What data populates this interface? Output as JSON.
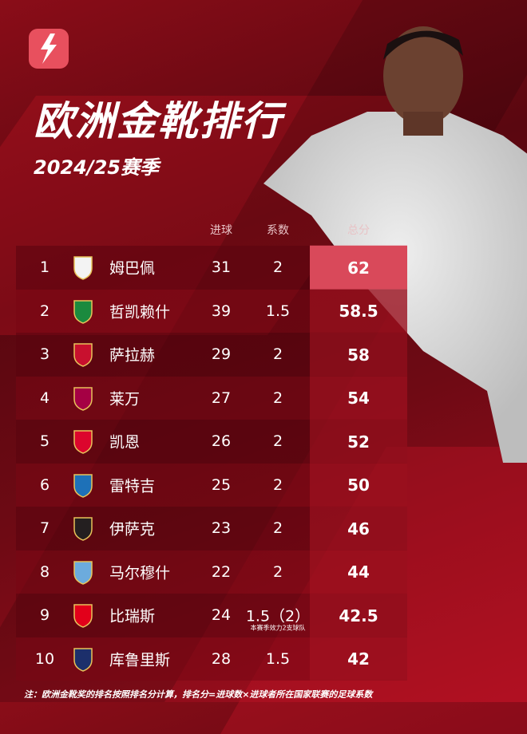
{
  "title": "欧洲金靴排行",
  "season": "2024/25赛季",
  "colors": {
    "accent": "#e8505e",
    "highlight": "#d9495a",
    "background": "#6e0a14"
  },
  "headers": {
    "goals": "进球",
    "coef": "系数",
    "total": "总分"
  },
  "rows": [
    {
      "rank": "1",
      "name": "姆巴佩",
      "goals": "31",
      "coef": "2",
      "total": "62",
      "club_color": "#f3f3f3"
    },
    {
      "rank": "2",
      "name": "哲凯赖什",
      "goals": "39",
      "coef": "1.5",
      "total": "58.5",
      "club_color": "#1b8a3e"
    },
    {
      "rank": "3",
      "name": "萨拉赫",
      "goals": "29",
      "coef": "2",
      "total": "58",
      "club_color": "#c8102e"
    },
    {
      "rank": "4",
      "name": "莱万",
      "goals": "27",
      "coef": "2",
      "total": "54",
      "club_color": "#a50044"
    },
    {
      "rank": "5",
      "name": "凯恩",
      "goals": "26",
      "coef": "2",
      "total": "52",
      "club_color": "#dc052d"
    },
    {
      "rank": "6",
      "name": "雷特吉",
      "goals": "25",
      "coef": "2",
      "total": "50",
      "club_color": "#1e71b8"
    },
    {
      "rank": "7",
      "name": "伊萨克",
      "goals": "23",
      "coef": "2",
      "total": "46",
      "club_color": "#241f20"
    },
    {
      "rank": "8",
      "name": "马尔穆什",
      "goals": "22",
      "coef": "2",
      "total": "44",
      "club_color": "#6cabdd"
    },
    {
      "rank": "9",
      "name": "比瑞斯",
      "goals": "24",
      "coef": "1.5（2）",
      "note": "本赛季效力2支球队",
      "total": "42.5",
      "club_color": "#e2001a"
    },
    {
      "rank": "10",
      "name": "库鲁里斯",
      "goals": "28",
      "coef": "1.5",
      "total": "42",
      "club_color": "#1c2f6b"
    }
  ],
  "footnote": "注：欧洲金靴奖的排名按照排名分计算，排名分=进球数×进球者所在国家联赛的足球系数"
}
